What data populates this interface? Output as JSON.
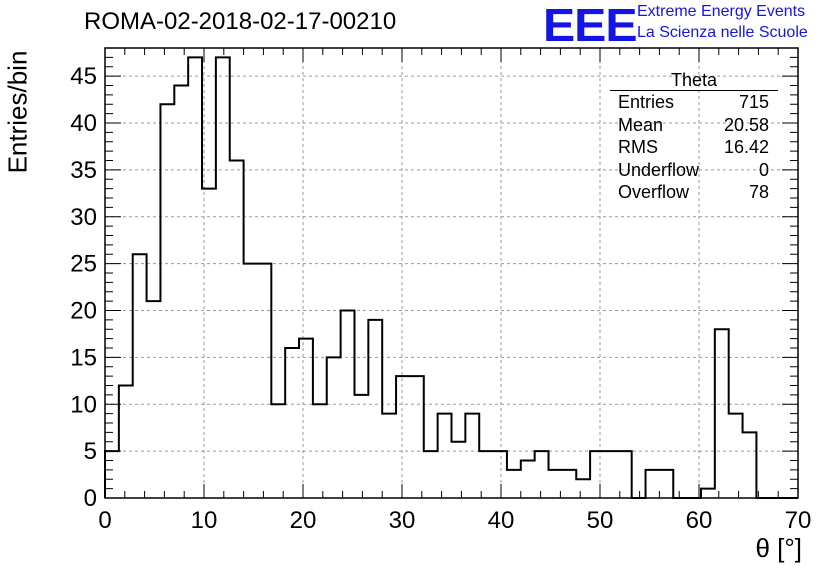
{
  "chart_data": {
    "type": "histogram",
    "title": "ROMA-02-2018-02-17-00210",
    "xlabel": "θ [°]",
    "ylabel": "Entries/bin",
    "xlim": [
      0,
      70
    ],
    "ylim": [
      0,
      48
    ],
    "x_ticks": [
      0,
      10,
      20,
      30,
      40,
      50,
      60,
      70
    ],
    "y_ticks": [
      0,
      5,
      10,
      15,
      20,
      25,
      30,
      35,
      40,
      45
    ],
    "grid": true,
    "bin_edges": [
      0,
      1.4,
      2.8,
      4.2,
      5.6,
      7.0,
      8.4,
      9.8,
      11.2,
      12.6,
      14.0,
      15.4,
      16.8,
      18.2,
      19.6,
      21.0,
      22.4,
      23.8,
      25.2,
      26.6,
      28.0,
      29.4,
      30.8,
      32.2,
      33.6,
      35.0,
      36.4,
      37.8,
      39.2,
      40.6,
      42.0,
      43.4,
      44.8,
      46.2,
      47.6,
      49.0,
      50.4,
      51.8,
      53.2,
      54.6,
      56.0,
      57.4,
      58.8,
      60.2,
      61.6,
      63.0,
      64.4,
      65.8,
      67.2,
      68.6,
      70.0
    ],
    "values": [
      5,
      12,
      26,
      21,
      42,
      44,
      47,
      33,
      47,
      36,
      25,
      25,
      10,
      16,
      17,
      10,
      15,
      20,
      11,
      19,
      9,
      13,
      13,
      5,
      9,
      6,
      9,
      5,
      5,
      3,
      4,
      5,
      3,
      3,
      2,
      5,
      5,
      5,
      0,
      3,
      3,
      0,
      0,
      1,
      18,
      9,
      7,
      0,
      0,
      0
    ],
    "stats": {
      "name": "Theta",
      "rows": [
        {
          "label": "Entries",
          "value": "715"
        },
        {
          "label": "Mean",
          "value": "20.58"
        },
        {
          "label": "RMS",
          "value": "16.42"
        },
        {
          "label": "Underflow",
          "value": "0"
        },
        {
          "label": "Overflow",
          "value": "78"
        }
      ]
    },
    "line_color": "#000000",
    "grid_color": "#999999"
  },
  "logo": {
    "mark": "EEE",
    "line1": "Extreme Energy Events",
    "line2": "La Scienza nelle Scuole",
    "color": "#1414e6"
  }
}
